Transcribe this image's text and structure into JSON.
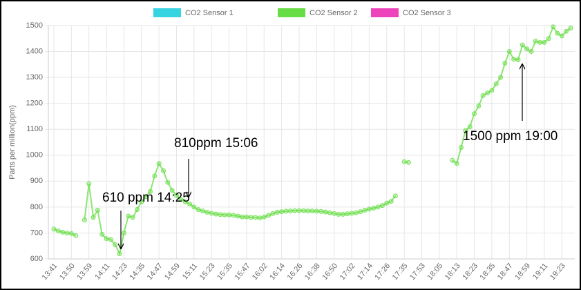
{
  "chart_data": {
    "type": "line",
    "y_label": "Parts per million(ppm)",
    "categories": [
      "13:41",
      null,
      null,
      null,
      "13:50",
      null,
      null,
      null,
      "13:59",
      null,
      null,
      null,
      "14:11",
      null,
      null,
      null,
      "14:23",
      null,
      null,
      null,
      "14:35",
      null,
      null,
      null,
      "14:47",
      null,
      null,
      null,
      "14:59",
      null,
      null,
      null,
      "15:11",
      null,
      null,
      null,
      "15:23",
      null,
      null,
      null,
      "15:35",
      null,
      null,
      null,
      "15:47",
      null,
      null,
      null,
      "16:02",
      null,
      null,
      null,
      "16:14",
      null,
      null,
      null,
      "16:26",
      null,
      null,
      null,
      "16:38",
      null,
      null,
      null,
      "16:50",
      null,
      null,
      null,
      "17:02",
      null,
      null,
      null,
      "17:14",
      null,
      null,
      null,
      "17:26",
      null,
      null,
      null,
      "17:35",
      null,
      null,
      null,
      "17:53",
      null,
      null,
      null,
      "18:05",
      null,
      null,
      null,
      "18:13",
      null,
      null,
      null,
      "18:23",
      null,
      null,
      null,
      "18:35",
      null,
      null,
      null,
      "18:47",
      null,
      null,
      null,
      "18:59",
      null,
      null,
      null,
      "19:11",
      null,
      null,
      null,
      "19:23",
      null,
      null
    ],
    "series": [
      {
        "name": "CO2 Sensor 1",
        "color": "#36d3e0"
      },
      {
        "name": "CO2 Sensor 2",
        "color": "#66dd44",
        "values": [
          715,
          708,
          703,
          700,
          698,
          690,
          null,
          750,
          890,
          760,
          788,
          695,
          678,
          675,
          655,
          620,
          700,
          765,
          760,
          790,
          820,
          840,
          860,
          920,
          968,
          940,
          895,
          865,
          845,
          830,
          820,
          812,
          800,
          790,
          785,
          780,
          776,
          773,
          771,
          770,
          770,
          768,
          765,
          762,
          762,
          760,
          760,
          758,
          762,
          768,
          775,
          780,
          782,
          784,
          785,
          786,
          786,
          786,
          785,
          785,
          784,
          783,
          781,
          778,
          775,
          772,
          772,
          774,
          776,
          778,
          782,
          788,
          792,
          796,
          800,
          806,
          815,
          822,
          843,
          null,
          975,
          972,
          null,
          null,
          null,
          null,
          null,
          null,
          null,
          null,
          null,
          980,
          968,
          1030,
          1095,
          1110,
          1160,
          1190,
          1230,
          1240,
          1250,
          1275,
          1300,
          1355,
          1400,
          1370,
          1368,
          1425,
          1410,
          1400,
          1440,
          1435,
          1435,
          1450,
          1495,
          1470,
          1460,
          1478,
          1490
        ]
      },
      {
        "name": "CO2 Sensor 3",
        "color": "#ee44bb"
      }
    ],
    "ylim": [
      600,
      1500
    ],
    "yticks": [
      600,
      700,
      800,
      900,
      1000,
      1100,
      1200,
      1300,
      1400,
      1500
    ],
    "grid": true,
    "legend": "top",
    "annotations": [
      "610 ppm 14:25",
      "810ppm 15:06",
      "1500 ppm 19:00"
    ]
  }
}
